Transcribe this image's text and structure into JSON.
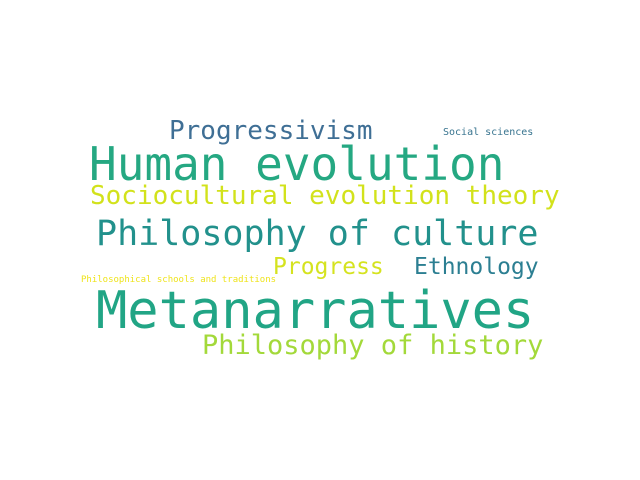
{
  "words": [
    {
      "text": "Metanarratives",
      "color": "#21a585"
    },
    {
      "text": "Human evolution",
      "color": "#25a882"
    },
    {
      "text": "Philosophy of culture",
      "color": "#22918c"
    },
    {
      "text": "Progressivism",
      "color": "#3f6f95"
    },
    {
      "text": "Sociocultural evolution theory",
      "color": "#d2e21b"
    },
    {
      "text": "Philosophy of history",
      "color": "#a3d93a"
    },
    {
      "text": "Ethnology",
      "color": "#2c7f92"
    },
    {
      "text": "Progress",
      "color": "#d5e31f"
    },
    {
      "text": "Social sciences",
      "color": "#38748f"
    },
    {
      "text": "Philosophical schools and traditions",
      "color": "#efe41c"
    }
  ]
}
